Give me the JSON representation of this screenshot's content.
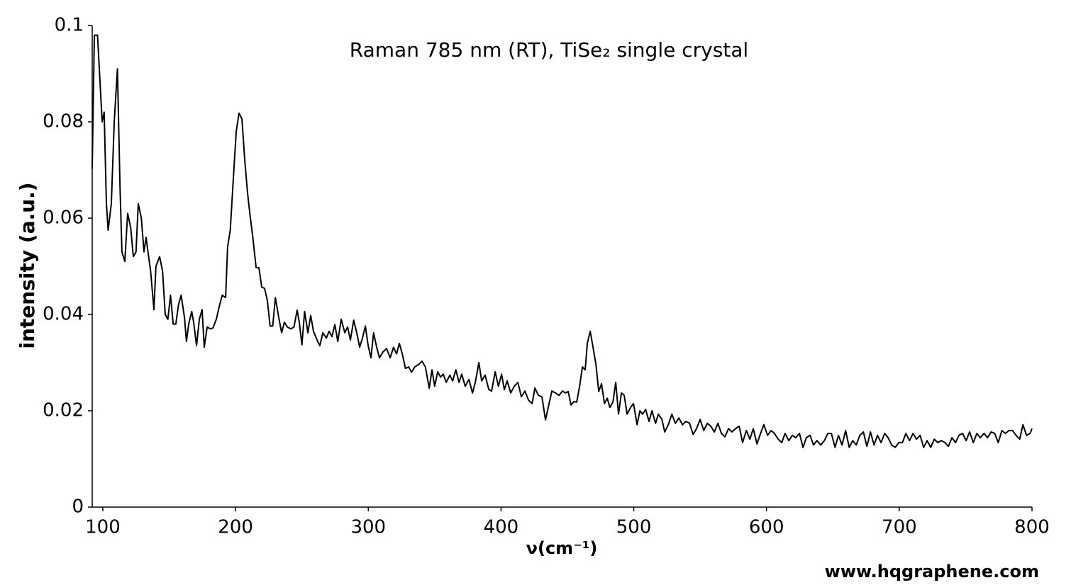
{
  "chart_data": {
    "type": "line",
    "title": "Raman 785 nm (RT), TiSe₂ single crystal",
    "xlabel": "ν(cm⁻¹)",
    "ylabel": "intensity (a.u.)",
    "watermark": "www.hqgraphene.com",
    "xlim": [
      92,
      800
    ],
    "ylim": [
      0,
      0.1
    ],
    "xticks": [
      100,
      200,
      300,
      400,
      500,
      600,
      700,
      800
    ],
    "yticks": [
      0,
      0.02,
      0.04,
      0.06,
      0.08,
      0.1
    ],
    "grid": false,
    "series": [
      {
        "name": "TiSe₂",
        "color": "#000000",
        "x": [
          92,
          93.6,
          96,
          99.5,
          101,
          102.7,
          104,
          106.4,
          108.6,
          111,
          113,
          114.4,
          116.6,
          118.7,
          121,
          123,
          125,
          126.7,
          129,
          131,
          132.6,
          134.7,
          136,
          138.5,
          140,
          142.8,
          145,
          147,
          149,
          151,
          153,
          155,
          157,
          159,
          161.5,
          163,
          164.7,
          167,
          168.4,
          170.6,
          172.7,
          174.8,
          176.4,
          178.6,
          181,
          183,
          185.5,
          188,
          190,
          192.5,
          194,
          196,
          198.5,
          200.5,
          202.6,
          204.8,
          207,
          209,
          211,
          213,
          215.5,
          217.6,
          219.7,
          221.9,
          224,
          226,
          228,
          230,
          232.5,
          234.7,
          236.8,
          239,
          241.6,
          244,
          246.4,
          248,
          250,
          252,
          254.5,
          256.6,
          258.7,
          261.4,
          263.5,
          265.7,
          268.4,
          270.5,
          272.6,
          274.8,
          277,
          279.6,
          282.3,
          284.4,
          286.5,
          289,
          291.3,
          293.5,
          295.6,
          297.8,
          299.9,
          302,
          304,
          306.3,
          308.4,
          311,
          313.8,
          316.5,
          319,
          321.3,
          323.4,
          325.6,
          328,
          330.4,
          332.5,
          335,
          337.8,
          340.5,
          343,
          345.9,
          348,
          350,
          352.3,
          354.4,
          356.5,
          358.7,
          361.4,
          363.5,
          366,
          368.3,
          370.4,
          373,
          375.8,
          378.5,
          380.6,
          383.3,
          385.4,
          388,
          390.8,
          392.9,
          395.6,
          398,
          400.4,
          402.5,
          404.6,
          407.3,
          410,
          412.7,
          415.3,
          418,
          420.7,
          423.4,
          425.5,
          428.2,
          430.8,
          433.5,
          436.2,
          438.3,
          441,
          443.7,
          446.3,
          448.5,
          450.6,
          452.7,
          454.9,
          457,
          459.2,
          461.3,
          463.4,
          465,
          467.2,
          469.3,
          471.5,
          473.6,
          475.7,
          477.9,
          480,
          482,
          484.3,
          486.4,
          488.5,
          490.7,
          492.8,
          495,
          497.6,
          499.8,
          502.5,
          504.6,
          506.7,
          508.9,
          511.5,
          513.7,
          516.4,
          518.5,
          521.2,
          523.3,
          526,
          528.7,
          531.3,
          534,
          536.7,
          539.3,
          542,
          544.7,
          547.3,
          550,
          552.7,
          555.4,
          558,
          560.7,
          563.4,
          566,
          568.7,
          571.4,
          574,
          576.7,
          579.4,
          582,
          584.8,
          587.5,
          590,
          592.8,
          595.5,
          598,
          600.8,
          603.5,
          606,
          608.8,
          611.5,
          614,
          616.8,
          619.5,
          622,
          624.8,
          627.5,
          630,
          632.8,
          635.4,
          638,
          640.9,
          643.6,
          646.2,
          648.9,
          651.6,
          654.2,
          656.9,
          659.6,
          662.3,
          664.9,
          667.6,
          670.3,
          673,
          675.6,
          678.3,
          681,
          683.6,
          686.3,
          689,
          691.6,
          694.3,
          697,
          699.7,
          702.4,
          705,
          707.7,
          710.4,
          713,
          715.7,
          718.4,
          721,
          723.7,
          726.4,
          729,
          731.7,
          734.4,
          737,
          739.7,
          742.4,
          745,
          747.7,
          750.4,
          753,
          755.8,
          758.5,
          761,
          763.9,
          766.5,
          769.2,
          771.9,
          774.6,
          777.3,
          780,
          782.6,
          785.3,
          788,
          790.7,
          793.2,
          795.9,
          798.6,
          800
        ],
        "values": [
          0.0703,
          0.098,
          0.098,
          0.08,
          0.082,
          0.063,
          0.0575,
          0.063,
          0.08,
          0.091,
          0.066,
          0.053,
          0.051,
          0.061,
          0.058,
          0.052,
          0.053,
          0.063,
          0.06,
          0.053,
          0.056,
          0.0516,
          0.049,
          0.041,
          0.05,
          0.052,
          0.049,
          0.04,
          0.039,
          0.044,
          0.038,
          0.038,
          0.042,
          0.044,
          0.0394,
          0.0344,
          0.038,
          0.0406,
          0.0384,
          0.0335,
          0.039,
          0.041,
          0.0332,
          0.0374,
          0.037,
          0.0372,
          0.039,
          0.042,
          0.044,
          0.0435,
          0.054,
          0.0575,
          0.069,
          0.078,
          0.0818,
          0.0806,
          0.0718,
          0.0653,
          0.0604,
          0.056,
          0.0497,
          0.0497,
          0.0457,
          0.0454,
          0.0428,
          0.0376,
          0.0376,
          0.0435,
          0.0394,
          0.0362,
          0.0384,
          0.0374,
          0.037,
          0.0374,
          0.0409,
          0.0384,
          0.0337,
          0.0406,
          0.0362,
          0.0398,
          0.0365,
          0.0347,
          0.0335,
          0.0362,
          0.0351,
          0.0365,
          0.0354,
          0.0379,
          0.0344,
          0.039,
          0.0362,
          0.0374,
          0.0347,
          0.0388,
          0.0362,
          0.0332,
          0.0351,
          0.0376,
          0.0335,
          0.031,
          0.0362,
          0.0332,
          0.031,
          0.0322,
          0.0329,
          0.031,
          0.0332,
          0.0318,
          0.034,
          0.0318,
          0.0288,
          0.0291,
          0.028,
          0.0291,
          0.0296,
          0.0303,
          0.0291,
          0.0247,
          0.0285,
          0.0251,
          0.0281,
          0.027,
          0.0276,
          0.0259,
          0.0274,
          0.0262,
          0.0285,
          0.0259,
          0.0276,
          0.0251,
          0.0265,
          0.0237,
          0.0259,
          0.03,
          0.0262,
          0.0274,
          0.0244,
          0.0241,
          0.0281,
          0.0251,
          0.0276,
          0.0244,
          0.0262,
          0.0237,
          0.0251,
          0.0259,
          0.0229,
          0.0241,
          0.0222,
          0.0215,
          0.0247,
          0.0232,
          0.0229,
          0.0181,
          0.0215,
          0.0241,
          0.0237,
          0.0232,
          0.0241,
          0.0237,
          0.024,
          0.0212,
          0.0219,
          0.0218,
          0.0251,
          0.0291,
          0.0285,
          0.034,
          0.0365,
          0.0332,
          0.0296,
          0.024,
          0.0256,
          0.0215,
          0.0226,
          0.0207,
          0.0218,
          0.0259,
          0.0193,
          0.0237,
          0.0232,
          0.0193,
          0.0207,
          0.0215,
          0.0171,
          0.02,
          0.0193,
          0.0203,
          0.0178,
          0.02,
          0.0174,
          0.0193,
          0.0182,
          0.0156,
          0.0171,
          0.0193,
          0.0174,
          0.0185,
          0.0171,
          0.0178,
          0.0174,
          0.0151,
          0.0163,
          0.0182,
          0.0159,
          0.0174,
          0.0168,
          0.0156,
          0.0174,
          0.0153,
          0.0146,
          0.0163,
          0.0156,
          0.0163,
          0.0168,
          0.0134,
          0.0159,
          0.0141,
          0.0163,
          0.0131,
          0.0153,
          0.0171,
          0.0149,
          0.0159,
          0.0153,
          0.0141,
          0.0134,
          0.0153,
          0.0138,
          0.0149,
          0.0144,
          0.0153,
          0.0124,
          0.0144,
          0.0149,
          0.0129,
          0.0138,
          0.0129,
          0.0138,
          0.0153,
          0.0153,
          0.0124,
          0.0149,
          0.0129,
          0.0159,
          0.0124,
          0.0138,
          0.0129,
          0.0149,
          0.0156,
          0.0126,
          0.0156,
          0.0129,
          0.0149,
          0.0134,
          0.0153,
          0.0144,
          0.0129,
          0.0124,
          0.0134,
          0.0134,
          0.0153,
          0.0138,
          0.0153,
          0.0141,
          0.0149,
          0.0124,
          0.0138,
          0.0124,
          0.0141,
          0.0134,
          0.0138,
          0.0134,
          0.0126,
          0.0144,
          0.0134,
          0.0149,
          0.0153,
          0.0138,
          0.0156,
          0.0134,
          0.0153,
          0.0144,
          0.0153,
          0.0144,
          0.0156,
          0.0153,
          0.0134,
          0.0159,
          0.0153,
          0.0159,
          0.0159,
          0.0149,
          0.0141,
          0.0171,
          0.0149,
          0.0153,
          0.0163
        ]
      }
    ]
  }
}
